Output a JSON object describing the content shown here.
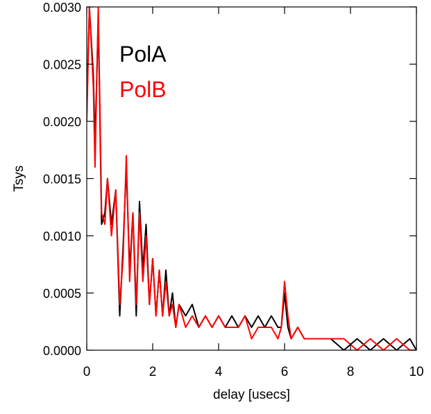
{
  "chart_data": {
    "type": "line",
    "title": "",
    "xlabel": "delay [usecs]",
    "ylabel": "Tsys",
    "xlim": [
      0,
      10
    ],
    "ylim": [
      0.0,
      0.003
    ],
    "x_ticks": [
      0,
      2,
      4,
      6,
      8,
      10
    ],
    "x_tick_labels": [
      "0",
      "2",
      "4",
      "6",
      "8",
      "10"
    ],
    "y_ticks": [
      0.0,
      0.0005,
      0.001,
      0.0015,
      0.002,
      0.0025,
      0.003
    ],
    "y_tick_labels": [
      "0.0000",
      "0.0005",
      "0.0010",
      "0.0015",
      "0.0020",
      "0.0025",
      "0.0030"
    ],
    "grid": false,
    "legend_position": "top-left",
    "series": [
      {
        "name": "PolA",
        "color": "#000000",
        "x": [
          0.0,
          0.08,
          0.2,
          0.25,
          0.35,
          0.45,
          0.55,
          0.63,
          0.75,
          0.88,
          1.0,
          1.1,
          1.2,
          1.3,
          1.4,
          1.5,
          1.6,
          1.7,
          1.8,
          1.9,
          2.0,
          2.1,
          2.2,
          2.3,
          2.4,
          2.5,
          2.6,
          2.7,
          2.8,
          3.0,
          3.2,
          3.4,
          3.6,
          3.8,
          4.0,
          4.2,
          4.4,
          4.6,
          4.8,
          5.0,
          5.2,
          5.4,
          5.6,
          5.8,
          5.9,
          6.0,
          6.1,
          6.2,
          6.4,
          6.6,
          6.8,
          7.0,
          7.4,
          7.8,
          8.2,
          8.6,
          9.0,
          9.4,
          9.8,
          10.0
        ],
        "values": [
          0.0021,
          0.003,
          0.0024,
          0.0018,
          0.0029,
          0.0011,
          0.0012,
          0.0015,
          0.0011,
          0.0014,
          0.0003,
          0.0009,
          0.0016,
          0.0007,
          0.0012,
          0.0003,
          0.0013,
          0.0007,
          0.0011,
          0.0004,
          0.0008,
          0.0003,
          0.0007,
          0.0003,
          0.0007,
          0.0003,
          0.0005,
          0.0002,
          0.0004,
          0.0003,
          0.0004,
          0.0002,
          0.0003,
          0.0002,
          0.0003,
          0.0002,
          0.0003,
          0.0002,
          0.0003,
          0.0002,
          0.0003,
          0.0002,
          0.0003,
          0.0002,
          0.0002,
          0.0005,
          0.0002,
          0.0001,
          0.0002,
          0.0001,
          0.0001,
          0.0001,
          0.0001,
          0.0,
          0.0001,
          0.0,
          0.0001,
          0.0,
          0.0001,
          0.0
        ]
      },
      {
        "name": "PolB",
        "color": "#ff0000",
        "x": [
          0.0,
          0.08,
          0.2,
          0.25,
          0.35,
          0.45,
          0.55,
          0.63,
          0.75,
          0.88,
          1.0,
          1.1,
          1.2,
          1.3,
          1.4,
          1.5,
          1.6,
          1.7,
          1.8,
          1.9,
          2.0,
          2.1,
          2.2,
          2.3,
          2.4,
          2.5,
          2.6,
          2.7,
          2.8,
          3.0,
          3.2,
          3.4,
          3.6,
          3.8,
          4.0,
          4.2,
          4.4,
          4.6,
          4.8,
          5.0,
          5.2,
          5.4,
          5.6,
          5.8,
          5.9,
          6.0,
          6.1,
          6.2,
          6.4,
          6.6,
          6.8,
          7.0,
          7.4,
          7.8,
          8.2,
          8.6,
          9.0,
          9.4,
          9.8,
          10.0
        ],
        "values": [
          0.002,
          0.003,
          0.0023,
          0.0016,
          0.003,
          0.0012,
          0.0011,
          0.0015,
          0.001,
          0.0014,
          0.0004,
          0.0008,
          0.0017,
          0.0006,
          0.0012,
          0.0004,
          0.0012,
          0.0006,
          0.001,
          0.0004,
          0.0008,
          0.0003,
          0.0007,
          0.0003,
          0.0006,
          0.0003,
          0.0004,
          0.0002,
          0.0004,
          0.0002,
          0.0003,
          0.0002,
          0.0003,
          0.0002,
          0.0003,
          0.0002,
          0.0002,
          0.0002,
          0.0003,
          0.0001,
          0.0002,
          0.0002,
          0.0002,
          0.0001,
          0.0002,
          0.0006,
          0.0003,
          0.0001,
          0.0002,
          0.0001,
          0.0001,
          0.0001,
          0.0001,
          0.0001,
          0.0,
          0.0001,
          0.0,
          0.0001,
          0.0,
          0.0
        ]
      }
    ]
  }
}
